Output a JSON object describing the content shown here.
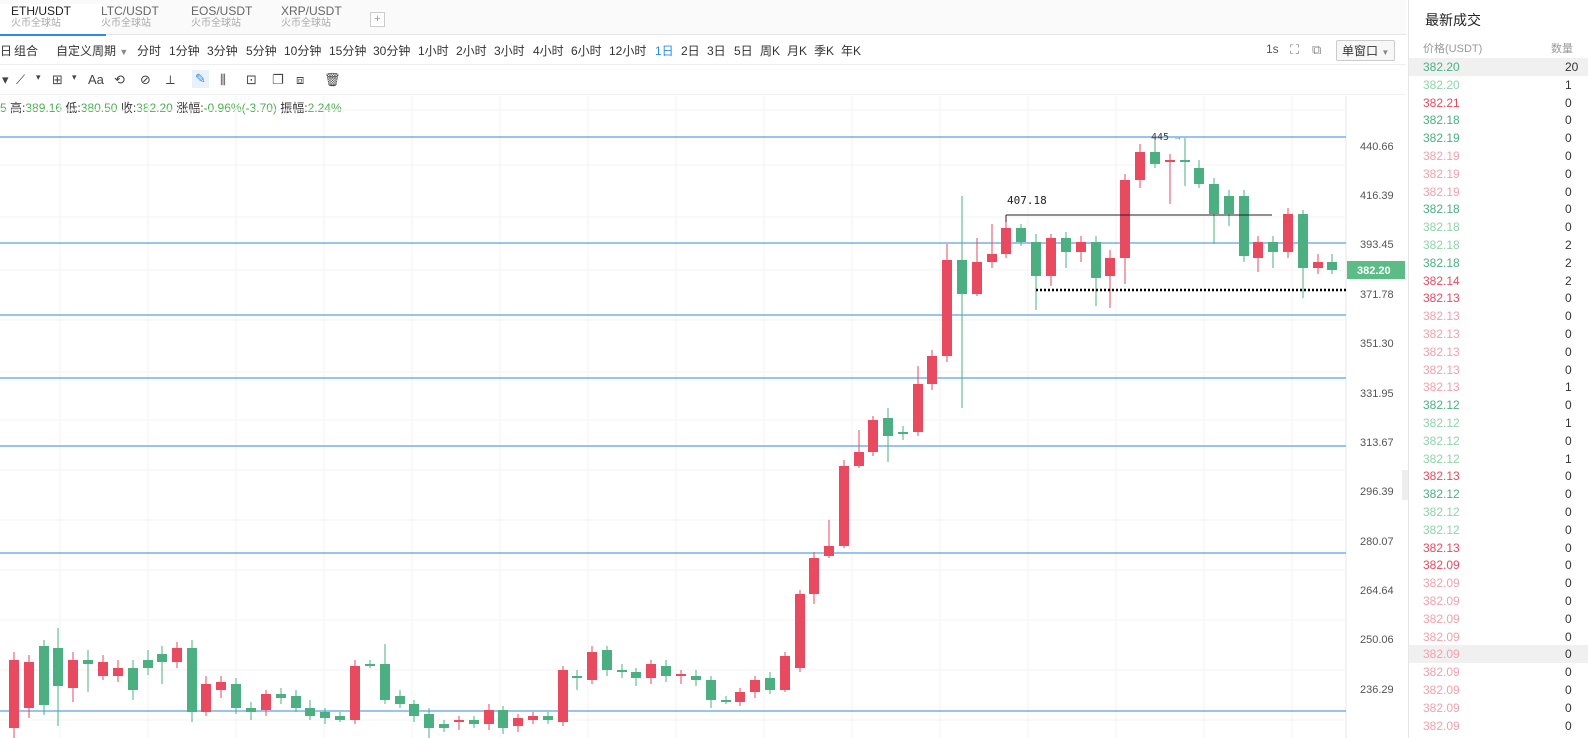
{
  "tabs": [
    {
      "name": "ETH/USDT",
      "sub": "火币全球站",
      "active": true
    },
    {
      "name": "LTC/USDT",
      "sub": "火币全球站",
      "active": false
    },
    {
      "name": "EOS/USDT",
      "sub": "火币全球站",
      "active": false
    },
    {
      "name": "XRP/USDT",
      "sub": "火币全球站",
      "active": false
    }
  ],
  "toolbar": {
    "combo": "组合",
    "custom_period": "自定义周期",
    "periods": [
      "分时",
      "1分钟",
      "3分钟",
      "5分钟",
      "10分钟",
      "15分钟",
      "30分钟",
      "1小时",
      "2小时",
      "3小时",
      "4小时",
      "6小时",
      "12小时",
      "1日",
      "2日",
      "3日",
      "5日",
      "周K",
      "月K",
      "季K",
      "年K"
    ],
    "selected_period": "1日",
    "interval": "1s",
    "window_mode": "单窗口"
  },
  "ohlc": {
    "open_label": "5",
    "high_label": "高:",
    "high": "389.16",
    "low_label": "低:",
    "low": "380.50",
    "close_label": "收:",
    "close": "382.20",
    "change_label": "涨幅:",
    "change": "-0.96%(-3.70)",
    "amp_label": "振幅:",
    "amp": "2.24%"
  },
  "chart_data": {
    "type": "candlestick",
    "y_ticks": [
      "440.66",
      "416.39",
      "393.45",
      "371.78",
      "351.30",
      "331.95",
      "313.67",
      "296.39",
      "280.07",
      "264.64",
      "250.06",
      "236.29"
    ],
    "last_price": "382.20",
    "annotations": {
      "high_marker": "445",
      "level_label": "407.18"
    },
    "colors": {
      "up": "#e84a5f",
      "down": "#4caf82",
      "hline": "#2f8ae5"
    }
  },
  "trades": {
    "title": "最新成交",
    "price_header": "价格(USDT)",
    "qty_header": "数量",
    "rows": [
      {
        "price": "382.20",
        "color": "#4caf82",
        "qty": "20"
      },
      {
        "price": "382.20",
        "color": "#8fd3aa",
        "qty": "1"
      },
      {
        "price": "382.21",
        "color": "#e84a5f",
        "qty": "0"
      },
      {
        "price": "382.18",
        "color": "#4caf82",
        "qty": "0"
      },
      {
        "price": "382.19",
        "color": "#4caf82",
        "qty": "0"
      },
      {
        "price": "382.19",
        "color": "#f4a0ad",
        "qty": "0"
      },
      {
        "price": "382.19",
        "color": "#f4a0ad",
        "qty": "0"
      },
      {
        "price": "382.19",
        "color": "#f4a0ad",
        "qty": "0"
      },
      {
        "price": "382.18",
        "color": "#4caf82",
        "qty": "0"
      },
      {
        "price": "382.18",
        "color": "#8fd3aa",
        "qty": "0"
      },
      {
        "price": "382.18",
        "color": "#8fd3aa",
        "qty": "2"
      },
      {
        "price": "382.18",
        "color": "#4caf82",
        "qty": "2"
      },
      {
        "price": "382.14",
        "color": "#e84a5f",
        "qty": "2"
      },
      {
        "price": "382.13",
        "color": "#e84a5f",
        "qty": "0"
      },
      {
        "price": "382.13",
        "color": "#f4a0ad",
        "qty": "0"
      },
      {
        "price": "382.13",
        "color": "#f4a0ad",
        "qty": "0"
      },
      {
        "price": "382.13",
        "color": "#f4a0ad",
        "qty": "0"
      },
      {
        "price": "382.13",
        "color": "#f4a0ad",
        "qty": "0"
      },
      {
        "price": "382.13",
        "color": "#f4a0ad",
        "qty": "1"
      },
      {
        "price": "382.12",
        "color": "#4caf82",
        "qty": "0"
      },
      {
        "price": "382.12",
        "color": "#8fd3aa",
        "qty": "1"
      },
      {
        "price": "382.12",
        "color": "#8fd3aa",
        "qty": "0"
      },
      {
        "price": "382.12",
        "color": "#8fd3aa",
        "qty": "1"
      },
      {
        "price": "382.13",
        "color": "#e84a5f",
        "qty": "0"
      },
      {
        "price": "382.12",
        "color": "#4caf82",
        "qty": "0"
      },
      {
        "price": "382.12",
        "color": "#8fd3aa",
        "qty": "0"
      },
      {
        "price": "382.12",
        "color": "#8fd3aa",
        "qty": "0"
      },
      {
        "price": "382.13",
        "color": "#e84a5f",
        "qty": "0"
      },
      {
        "price": "382.09",
        "color": "#e84a5f",
        "qty": "0"
      },
      {
        "price": "382.09",
        "color": "#f4a0ad",
        "qty": "0"
      },
      {
        "price": "382.09",
        "color": "#f4a0ad",
        "qty": "0"
      },
      {
        "price": "382.09",
        "color": "#f4a0ad",
        "qty": "0"
      },
      {
        "price": "382.09",
        "color": "#f4a0ad",
        "qty": "0"
      },
      {
        "price": "382.09",
        "color": "#f4a0ad",
        "qty": "0"
      },
      {
        "price": "382.09",
        "color": "#f4a0ad",
        "qty": "0"
      },
      {
        "price": "382.09",
        "color": "#f4a0ad",
        "qty": "0"
      },
      {
        "price": "382.09",
        "color": "#f4a0ad",
        "qty": "0"
      },
      {
        "price": "382.09",
        "color": "#f4a0ad",
        "qty": "0"
      }
    ]
  }
}
